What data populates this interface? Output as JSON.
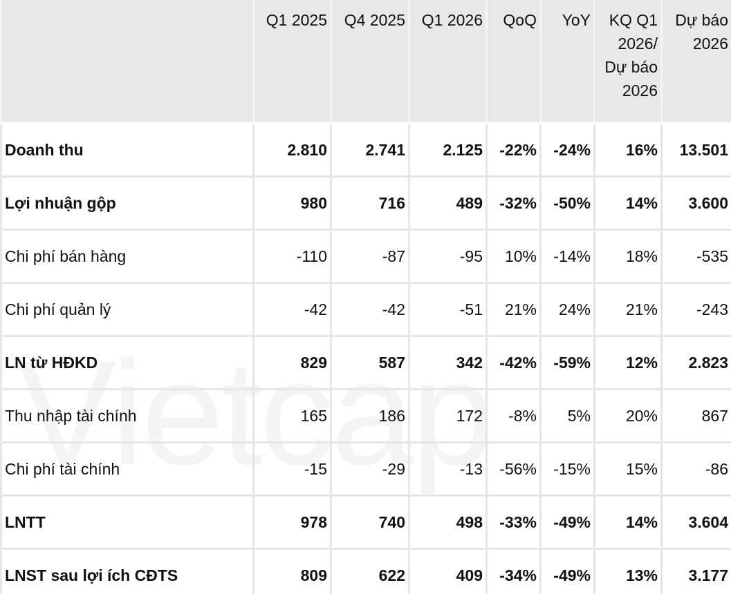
{
  "watermark": "Vietcap",
  "table": {
    "headers": [
      "",
      "Q1 2025",
      "Q4 2025",
      "Q1 2026",
      "QoQ",
      "YoY",
      "KQ Q1 2026/ Dự báo 2026",
      "Dự báo 2026"
    ],
    "rows": [
      [
        "Doanh thu",
        "2.810",
        "2.741",
        "2.125",
        "-22%",
        "-24%",
        "16%",
        "13.501"
      ],
      [
        "Lợi nhuận gộp",
        "980",
        "716",
        "489",
        "-32%",
        "-50%",
        "14%",
        "3.600"
      ],
      [
        "Chi phí bán hàng",
        "-110",
        "-87",
        "-95",
        "10%",
        "-14%",
        "18%",
        "-535"
      ],
      [
        "Chi phí quản lý",
        "-42",
        "-42",
        "-51",
        "21%",
        "24%",
        "21%",
        "-243"
      ],
      [
        "LN từ HĐKD",
        "829",
        "587",
        "342",
        "-42%",
        "-59%",
        "12%",
        "2.823"
      ],
      [
        "Thu nhập tài chính",
        "165",
        "186",
        "172",
        "-8%",
        "5%",
        "20%",
        "867"
      ],
      [
        "Chi phí tài chính",
        "-15",
        "-29",
        "-13",
        "-56%",
        "-15%",
        "15%",
        "-86"
      ],
      [
        "LNTT",
        "978",
        "740",
        "498",
        "-33%",
        "-49%",
        "14%",
        "3.604"
      ],
      [
        "LNST sau lợi ích CĐTS",
        "809",
        "622",
        "409",
        "-34%",
        "-49%",
        "13%",
        "3.177"
      ]
    ]
  }
}
